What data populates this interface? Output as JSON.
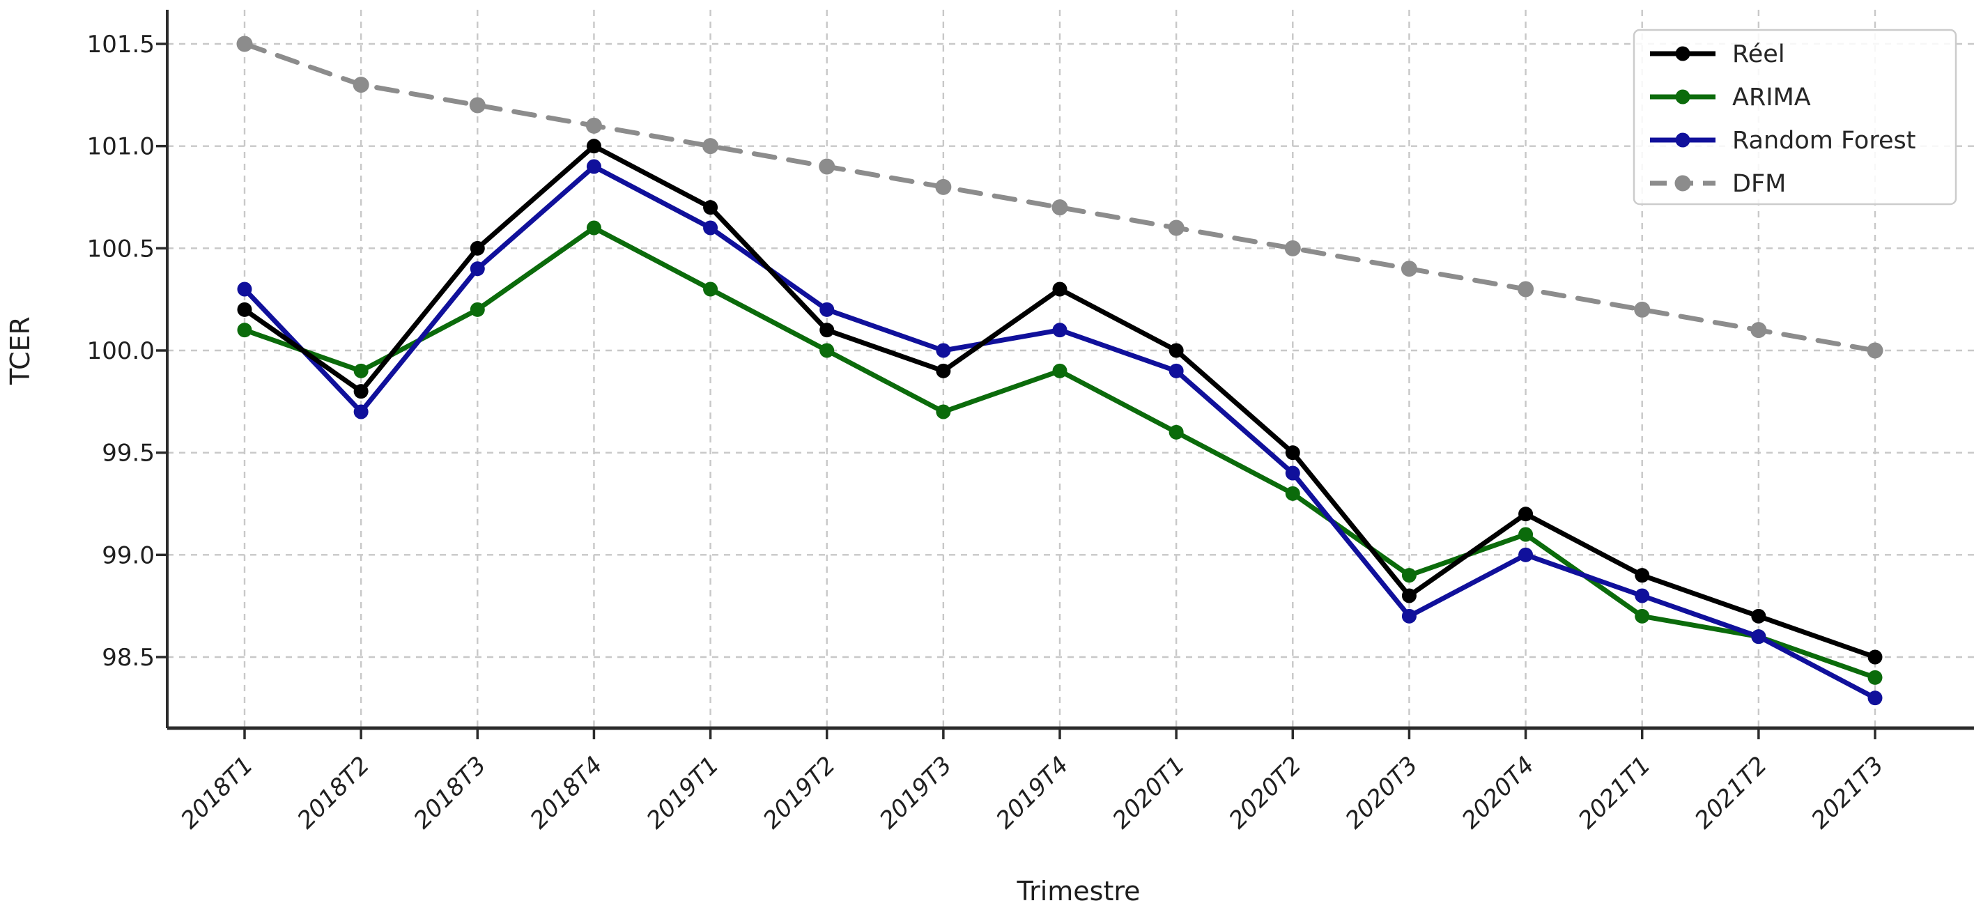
{
  "chart_data": {
    "type": "line",
    "title": "",
    "xlabel": "Trimestre",
    "ylabel": "TCER",
    "grid": true,
    "legend_position": "upper right",
    "categories": [
      "2018T1",
      "2018T2",
      "2018T3",
      "2018T4",
      "2019T1",
      "2019T2",
      "2019T3",
      "2019T4",
      "2020T1",
      "2020T2",
      "2020T3",
      "2020T4",
      "2021T1",
      "2021T2",
      "2021T3"
    ],
    "yticks": [
      98.5,
      99.0,
      99.5,
      100.0,
      100.5,
      101.0,
      101.5
    ],
    "ylim": [
      98.15,
      101.67
    ],
    "series": [
      {
        "name": "Réel",
        "color": "#000000",
        "style": "solid",
        "marker": "circle",
        "values": [
          100.2,
          99.8,
          100.5,
          101.0,
          100.7,
          100.1,
          99.9,
          100.3,
          100.0,
          99.5,
          98.8,
          99.2,
          98.9,
          98.7,
          98.5
        ]
      },
      {
        "name": "ARIMA",
        "color": "#0b6b0b",
        "style": "solid",
        "marker": "circle",
        "values": [
          100.1,
          99.9,
          100.2,
          100.6,
          100.3,
          100.0,
          99.7,
          99.9,
          99.6,
          99.3,
          98.9,
          99.1,
          98.7,
          98.6,
          98.4
        ]
      },
      {
        "name": "Random Forest",
        "color": "#10109b",
        "style": "solid",
        "marker": "circle",
        "values": [
          100.3,
          99.7,
          100.4,
          100.9,
          100.6,
          100.2,
          100.0,
          100.1,
          99.9,
          99.4,
          98.7,
          99.0,
          98.8,
          98.6,
          98.3
        ]
      },
      {
        "name": "DFM",
        "color": "#8c8c8c",
        "style": "dashed",
        "marker": "circle",
        "values": [
          101.5,
          101.3,
          101.2,
          101.1,
          101.0,
          100.9,
          100.8,
          100.7,
          100.6,
          100.5,
          100.4,
          100.3,
          100.2,
          100.1,
          100.0
        ]
      }
    ],
    "colors": {
      "grid": "#c8c8c8",
      "spine": "#2b2b2b",
      "legend_border": "#cccccc",
      "background": "#ffffff"
    }
  }
}
